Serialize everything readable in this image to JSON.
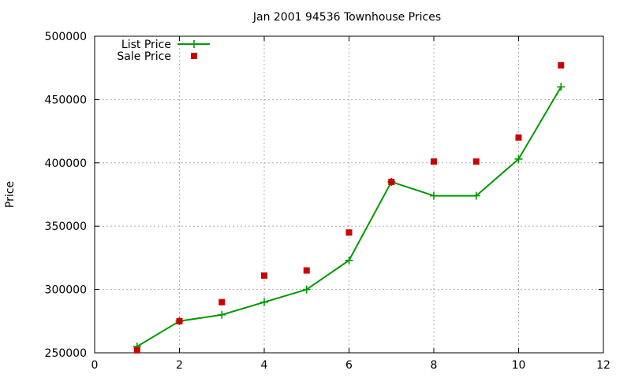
{
  "chart_data": {
    "type": "line",
    "title": "Jan 2001 94536 Townhouse Prices",
    "xlabel": "",
    "ylabel": "Price",
    "xlim": [
      0,
      12
    ],
    "ylim": [
      250000,
      500000
    ],
    "x_ticks": [
      0,
      2,
      4,
      6,
      8,
      10,
      12
    ],
    "y_ticks": [
      250000,
      300000,
      350000,
      400000,
      450000,
      500000
    ],
    "grid": true,
    "legend_position": "top-left",
    "series": [
      {
        "name": "List Price",
        "style": "line-points",
        "marker": "plus",
        "color": "#009900",
        "x": [
          1,
          2,
          3,
          4,
          5,
          6,
          7,
          8,
          9,
          10,
          11
        ],
        "y": [
          255000,
          275000,
          280000,
          290000,
          300000,
          323000,
          385000,
          374000,
          374000,
          403000,
          460000
        ]
      },
      {
        "name": "Sale Price",
        "style": "points",
        "marker": "square",
        "color": "#cc0000",
        "x": [
          1,
          2,
          3,
          4,
          5,
          6,
          7,
          8,
          9,
          10,
          11
        ],
        "y": [
          252000,
          275000,
          290000,
          311000,
          315000,
          345000,
          385000,
          401000,
          401000,
          420000,
          477000
        ]
      }
    ]
  }
}
